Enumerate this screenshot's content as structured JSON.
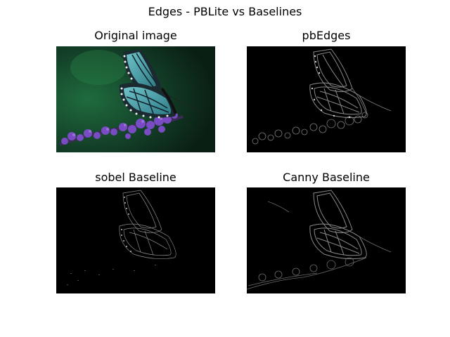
{
  "figure": {
    "title": "Edges - PBLite vs Baselines"
  },
  "panels": [
    {
      "title": "Original image",
      "content": "monarch-butterfly-photo"
    },
    {
      "title": "pbEdges",
      "content": "edge-map"
    },
    {
      "title": "sobel Baseline",
      "content": "edge-map"
    },
    {
      "title": "Canny Baseline",
      "content": "edge-map"
    }
  ],
  "colors": {
    "background": "#ffffff",
    "edge_background": "#000000",
    "photo_background": "#0f2a1c",
    "butterfly_wing": "#4fa0aa",
    "flowers": "#7a4cc4"
  }
}
